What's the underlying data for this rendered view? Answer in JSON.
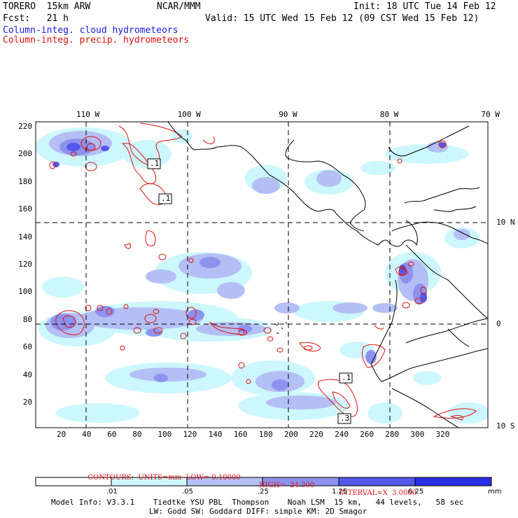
{
  "header": {
    "model": "TORERO  15km ARW",
    "org": "NCAR/MMM",
    "init": "Init: 18 UTC Tue 14 Feb 12",
    "fcst": "Fcst:   21 h",
    "valid": "Valid: 15 UTC Wed 15 Feb 12 (09 CST Wed 15 Feb 12)",
    "field1": "Column-integ. cloud hydrometeors",
    "field2": "Column-integ. precip. hydrometeors"
  },
  "map": {
    "top_lon_labels": [
      "110 W",
      "100 W",
      "90 W",
      "80 W",
      "70 W"
    ],
    "right_lat_labels": [
      "10 N",
      "0",
      "10 S"
    ],
    "y_ticks": [
      "220",
      "200",
      "180",
      "160",
      "140",
      "120",
      "100",
      "80",
      "60",
      "40",
      "20"
    ],
    "x_ticks": [
      "20",
      "40",
      "60",
      "80",
      "100",
      "120",
      "140",
      "160",
      "180",
      "200",
      "220",
      "240",
      "260",
      "280",
      "300",
      "320"
    ],
    "contour_labels": [
      ".1",
      ".1",
      ".1",
      ".3"
    ]
  },
  "contours": {
    "units": "CONTOURS:  UNITS=mm  LOW= 0.10000",
    "high": "HIGH=  24.300",
    "interval": "INTERVAL=X  3.0000"
  },
  "colorbar": {
    "labels": [
      ".01",
      ".05",
      ".25",
      "1.25",
      "6.25"
    ],
    "unit": "mm",
    "colors": [
      "#ffffff",
      "#ccf7fd",
      "#b4bff5",
      "#8c92ee",
      "#5457e8",
      "#2a2ee4"
    ]
  },
  "footer": {
    "line1": "Model Info: V3.3.1    Tiedtke YSU PBL  Thompson    Noah LSM  15 km,   44 levels,   58 sec",
    "line2": "LW: Godd SW: Goddard DIFF: simple KM: 2D Smagor"
  }
}
